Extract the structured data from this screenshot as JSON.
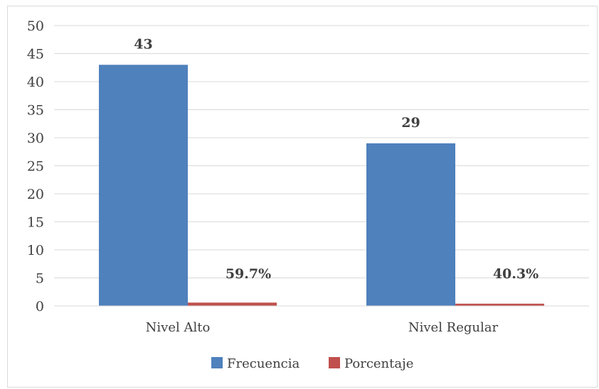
{
  "chart_data": {
    "type": "bar",
    "categories": [
      "Nivel Alto",
      "Nivel Regular"
    ],
    "series": [
      {
        "name": "Frecuencia",
        "values": [
          43,
          29
        ],
        "labels": [
          "43",
          "29"
        ],
        "color": "#4f81bd"
      },
      {
        "name": "Porcentaje",
        "values": [
          0.597,
          0.403
        ],
        "labels": [
          "59.7%",
          "40.3%"
        ],
        "color": "#c0504d"
      }
    ],
    "title": "",
    "xlabel": "",
    "ylabel": "",
    "ylim": [
      0,
      50
    ],
    "yticks": [
      "0",
      "5",
      "10",
      "15",
      "20",
      "25",
      "30",
      "35",
      "40",
      "45",
      "50"
    ],
    "grid": true,
    "legend_position": "bottom"
  }
}
